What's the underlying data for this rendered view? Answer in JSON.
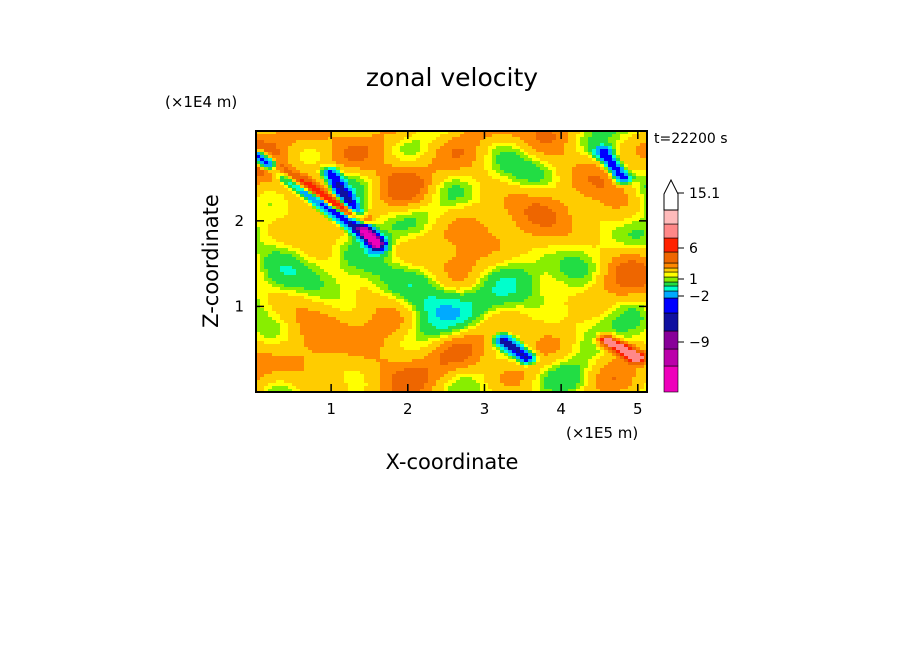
{
  "chart_data": {
    "type": "heatmap",
    "title": "zonal velocity",
    "xlabel": "X-coordinate",
    "ylabel": "Z-coordinate",
    "x_unit": "(×1E5 m)",
    "y_unit": "(×1E4 m)",
    "time_label": "t=22200 s",
    "xlim": [
      0.02,
      5.12
    ],
    "ylim": [
      0,
      3.05
    ],
    "x_ticks": [
      "1",
      "2",
      "3",
      "4",
      "5"
    ],
    "x_tick_values": [
      1,
      2,
      3,
      4,
      5
    ],
    "y_ticks": [
      "1",
      "2"
    ],
    "y_tick_values": [
      1,
      2
    ],
    "grid": false,
    "colorbar": {
      "position": "right",
      "levels": [
        "-9",
        "-2",
        "1",
        "6",
        "15.1"
      ],
      "level_values": [
        -9,
        -2,
        1,
        6,
        15.1
      ],
      "colors": [
        "#ee00bb",
        "#bb00aa",
        "#880099",
        "#1010a0",
        "#0000ff",
        "#00aaff",
        "#00ffcc",
        "#22dd44",
        "#88ee00",
        "#ffff00",
        "#ffcc00",
        "#ff8800",
        "#ee6600",
        "#ff2200",
        "#ff8888",
        "#ffbbbb",
        "#ffffff"
      ]
    },
    "features": [
      {
        "desc": "diagonal negative band",
        "x0": 0.05,
        "z0": 2.75,
        "x1": 1.6,
        "z1": 1.75,
        "value": -9
      },
      {
        "desc": "diagonal negative band upper",
        "x0": 1.0,
        "z0": 2.55,
        "x1": 1.6,
        "z1": 1.7,
        "value": -7
      },
      {
        "desc": "positive band",
        "x0": 0.3,
        "z0": 2.6,
        "x1": 1.4,
        "z1": 2.0,
        "value": 8
      },
      {
        "desc": "negative patch",
        "x0": 3.25,
        "z0": 0.6,
        "x1": 3.55,
        "z1": 0.4,
        "value": -8
      },
      {
        "desc": "negative patch",
        "x0": 4.55,
        "z0": 2.8,
        "x1": 4.8,
        "z1": 2.5,
        "value": -7
      },
      {
        "desc": "positive patch",
        "x0": 4.6,
        "z0": 0.6,
        "x1": 5.0,
        "z1": 0.4,
        "value": 7
      }
    ]
  }
}
